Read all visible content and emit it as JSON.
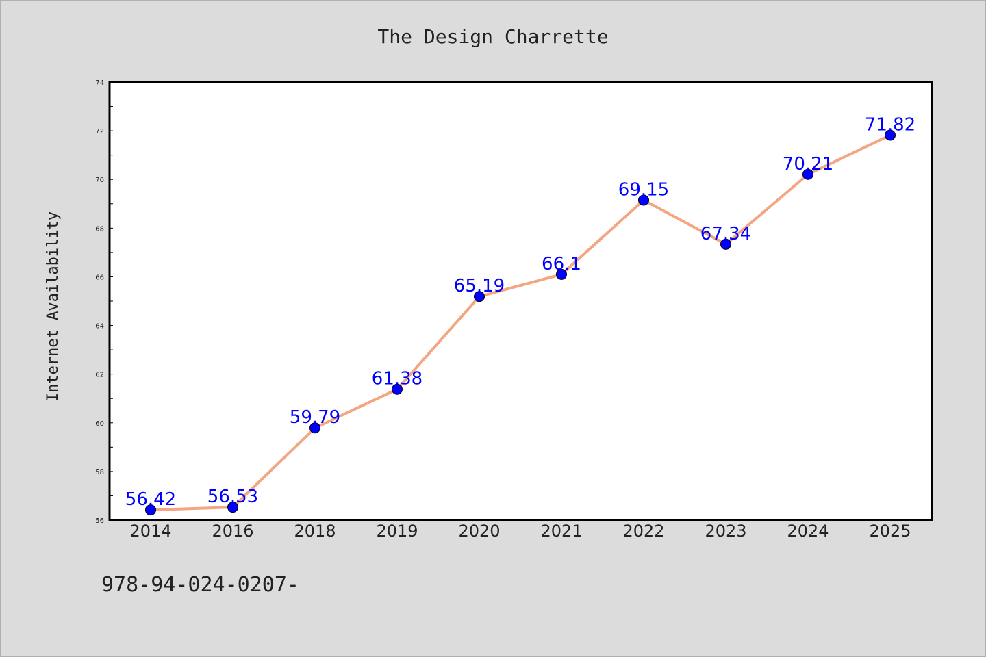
{
  "footer_text": "978-94-024-0207-",
  "chart_data": {
    "type": "line",
    "title": "The Design Charrette",
    "xlabel": "",
    "ylabel": "Internet Availability",
    "categories": [
      "2014",
      "2016",
      "2018",
      "2019",
      "2020",
      "2021",
      "2022",
      "2023",
      "2024",
      "2025"
    ],
    "series": [
      {
        "values": [
          56.42,
          56.53,
          59.79,
          61.38,
          65.19,
          66.1,
          69.15,
          67.34,
          70.21,
          71.82
        ],
        "data_labels": [
          "56.42",
          "56.53",
          "59.79",
          "61.38",
          "65.19",
          "66.1",
          "69.15",
          "67.34",
          "70.21",
          "71.82"
        ],
        "line_color": "#f4a582",
        "marker_color": "#0000ff"
      }
    ],
    "ylim": [
      56,
      74
    ],
    "y_ticks": [
      "56",
      "58",
      "60",
      "62",
      "64",
      "66",
      "68",
      "70",
      "72",
      "74"
    ],
    "grid": false,
    "legend": "none",
    "colors": {
      "background": "#dcdcdc",
      "plot_background": "#ffffff",
      "label": "#0000ff"
    }
  }
}
